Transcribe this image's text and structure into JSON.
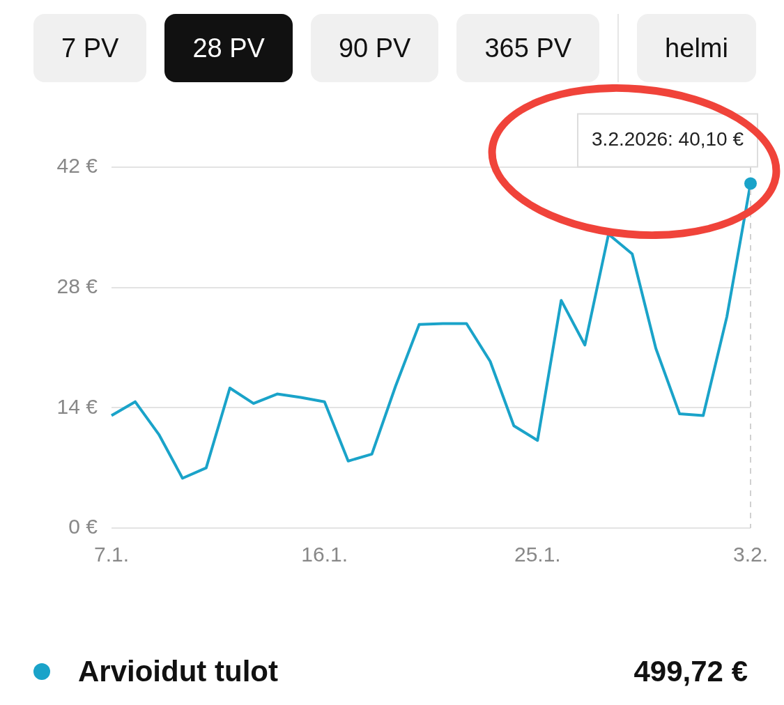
{
  "chart_data": {
    "type": "line",
    "categories": [
      "7.1.",
      null,
      null,
      null,
      null,
      null,
      null,
      null,
      null,
      "16.1.",
      null,
      null,
      null,
      null,
      null,
      null,
      null,
      null,
      "25.1.",
      null,
      null,
      null,
      null,
      null,
      null,
      null,
      null,
      "3.2."
    ],
    "series": [
      {
        "name": "Arvioidut tulot",
        "color": "#1aa3c9",
        "values": [
          13.1,
          14.7,
          10.9,
          5.8,
          7.0,
          16.3,
          14.5,
          15.6,
          15.2,
          14.7,
          7.8,
          8.6,
          16.5,
          23.7,
          23.8,
          23.8,
          19.4,
          11.9,
          10.2,
          26.5,
          21.3,
          34.2,
          31.9,
          20.9,
          13.3,
          13.1,
          24.6,
          40.1
        ]
      }
    ],
    "ylim": [
      0,
      42
    ],
    "yticks": [
      {
        "value": 0,
        "label": "0 €"
      },
      {
        "value": 14,
        "label": "14 €"
      },
      {
        "value": 28,
        "label": "28 €"
      },
      {
        "value": 42,
        "label": "42 €"
      }
    ],
    "grid": "y",
    "legend": "bottom left",
    "marker": "none",
    "line_style": "solid",
    "ref_lines": [
      {
        "axis": "x",
        "value": "3.2.",
        "label": null,
        "color": "#d0d0d0",
        "line_style": "dashed"
      }
    ],
    "annotations": [
      "7 PV",
      "28 PV",
      "90 PV",
      "365 PV",
      "helmi",
      {
        "text": "3.2.2026: 40,10 €",
        "x": "3.2.",
        "y": 40.1
      },
      "499,72 €"
    ]
  }
}
